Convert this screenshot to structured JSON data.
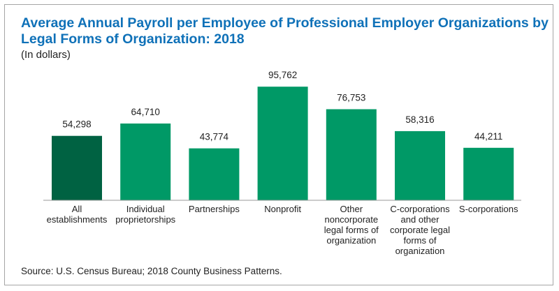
{
  "title": "Average Annual Payroll per Employee of Professional Employer Organizations by Legal Forms of Organization: 2018",
  "subtitle": "(In dollars)",
  "source": "Source: U.S. Census Bureau; 2018 County Business Patterns.",
  "colors": {
    "highlight": "#006242",
    "bar": "#009966",
    "axis": "#999999"
  },
  "chart_data": {
    "type": "bar",
    "title": "Average Annual Payroll per Employee of Professional Employer Organizations by Legal Forms of Organization: 2018",
    "subtitle": "(In dollars)",
    "categories": [
      "All establishments",
      "Individual proprietorships",
      "Partnerships",
      "Nonprofit",
      "Other noncorporate legal forms of organization",
      "C-corporations and other corporate legal forms of organization",
      "S-corporations"
    ],
    "category_lines": [
      [
        "All",
        "establishments"
      ],
      [
        "Individual",
        "proprietorships"
      ],
      [
        "Partnerships"
      ],
      [
        "Nonprofit"
      ],
      [
        "Other",
        "noncorporate",
        "legal forms of",
        "organization"
      ],
      [
        "C-corporations",
        "and other",
        "corporate legal",
        "forms of",
        "organization"
      ],
      [
        "S-corporations"
      ]
    ],
    "values": [
      54298,
      64710,
      43774,
      95762,
      76753,
      58316,
      44211
    ],
    "value_labels": [
      "54,298",
      "64,710",
      "43,774",
      "95,762",
      "76,753",
      "58,316",
      "44,211"
    ],
    "highlighted_index": 0,
    "xlabel": "",
    "ylabel": "",
    "ylim": [
      0,
      100000
    ],
    "grid": false,
    "legend": "none"
  }
}
